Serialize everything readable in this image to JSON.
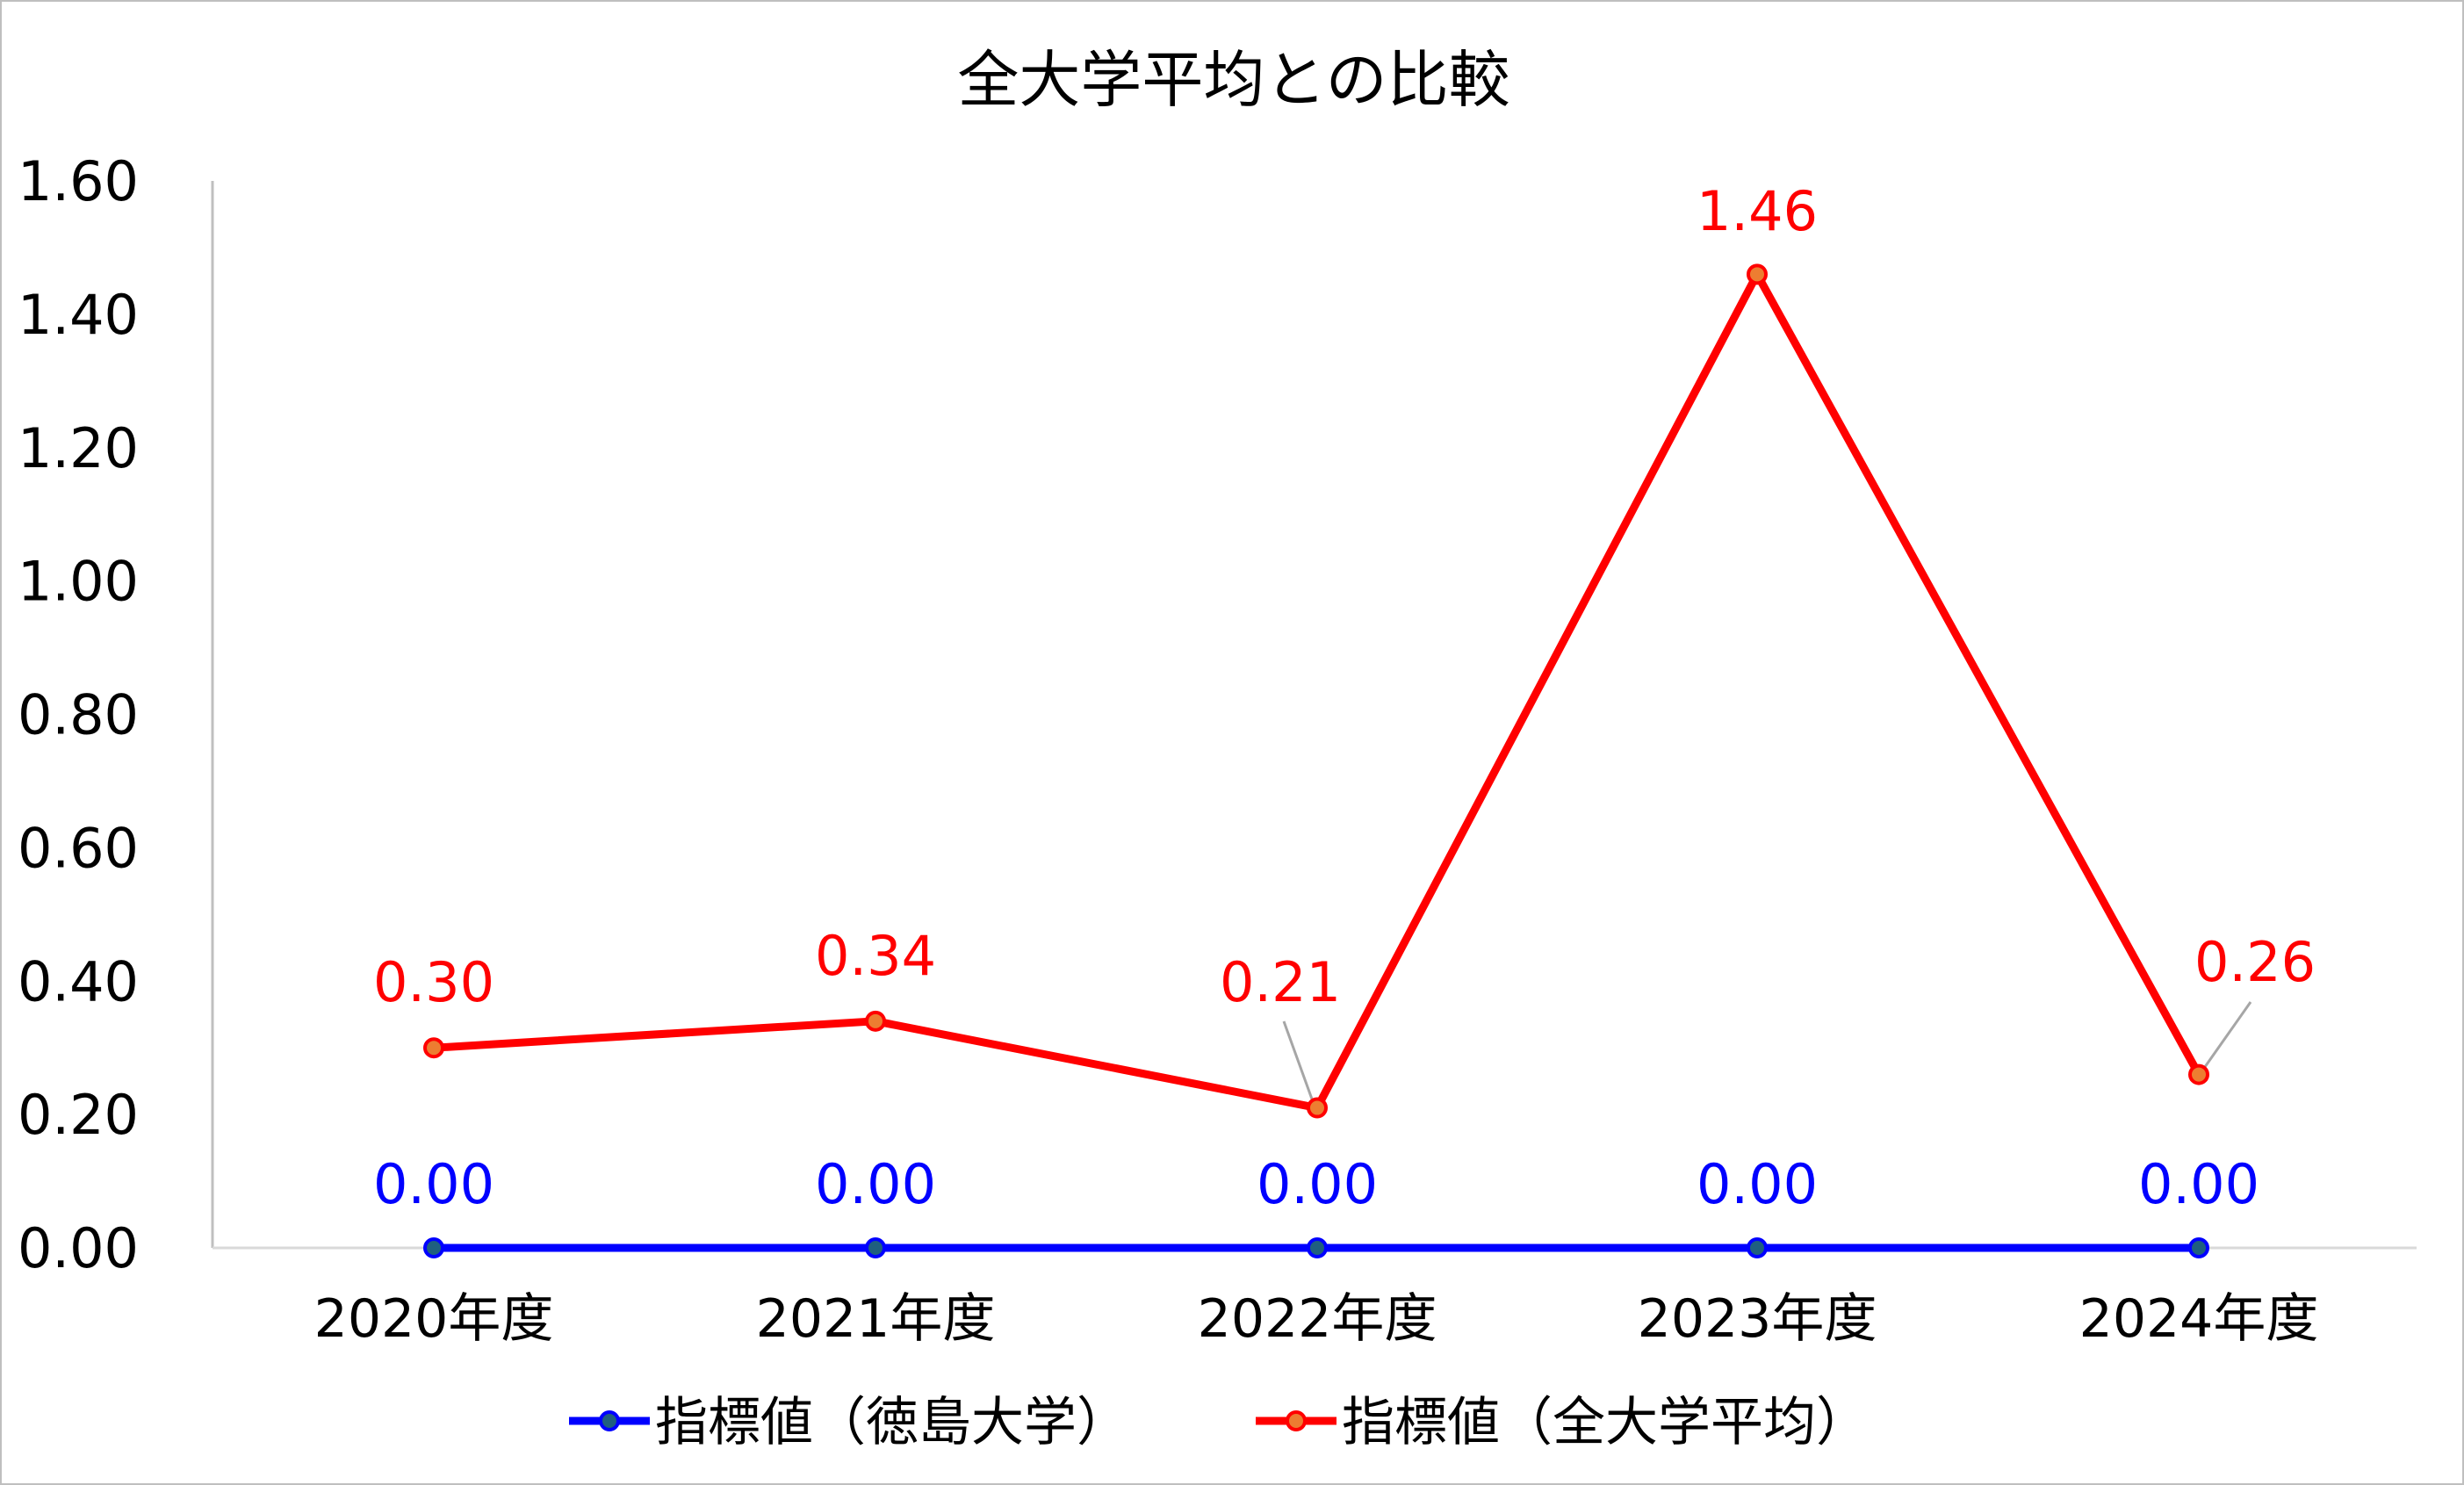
{
  "chart_data": {
    "type": "line",
    "title": "全大学平均との比較",
    "xlabel": "",
    "ylabel": "",
    "categories": [
      "2020年度",
      "2021年度",
      "2022年度",
      "2023年度",
      "2024年度"
    ],
    "series": [
      {
        "name": "指標値（徳島大学）",
        "values": [
          0.0,
          0.0,
          0.0,
          0.0,
          0.0
        ],
        "labels": [
          "0.00",
          "0.00",
          "0.00",
          "0.00",
          "0.00"
        ],
        "line_color": "#0000FF",
        "marker_fill": "#1F5F7F",
        "marker_edge": "#0000FF"
      },
      {
        "name": "指標値（全大学平均）",
        "values": [
          0.3,
          0.34,
          0.21,
          1.46,
          0.26
        ],
        "labels": [
          "0.30",
          "0.34",
          "0.21",
          "1.46",
          "0.26"
        ],
        "line_color": "#FF0000",
        "marker_fill": "#ED7D31",
        "marker_edge": "#FF0000"
      }
    ],
    "yticks": [
      "0.00",
      "0.20",
      "0.40",
      "0.60",
      "0.80",
      "1.00",
      "1.20",
      "1.40",
      "1.60"
    ],
    "ylim": [
      0,
      1.6
    ],
    "grid": false,
    "legend_position": "bottom"
  }
}
